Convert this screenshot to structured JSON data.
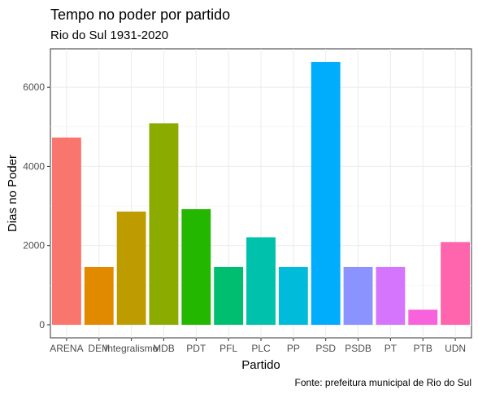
{
  "chart_data": {
    "type": "bar",
    "title": "Tempo no poder por partido",
    "subtitle": "Rio do Sul 1931-2020",
    "xlabel": "Partido",
    "ylabel": "Dias no Poder",
    "caption": "Fonte: prefeitura municipal de Rio do Sul",
    "categories": [
      "ARENA",
      "DEM",
      "Integralismo",
      "MDB",
      "PDT",
      "PFL",
      "PLC",
      "PP",
      "PSD",
      "PSDB",
      "PT",
      "PTB",
      "UDN"
    ],
    "values": [
      4730,
      1460,
      2860,
      5090,
      2920,
      1460,
      2210,
      1460,
      6640,
      1460,
      1460,
      380,
      2090
    ],
    "colors": [
      "#F8766D",
      "#E18A00",
      "#BE9C00",
      "#8CAB00",
      "#24B700",
      "#00BE70",
      "#00C1AB",
      "#00BBDA",
      "#00ACFC",
      "#8B93FF",
      "#D575FE",
      "#F962DD",
      "#FF65AC"
    ],
    "ylim": [
      -330,
      6970
    ],
    "yticks": [
      0,
      2000,
      4000,
      6000
    ],
    "ytick_labels": [
      "0",
      "2000",
      "4000",
      "6000"
    ],
    "grid": true,
    "legend": "none"
  }
}
